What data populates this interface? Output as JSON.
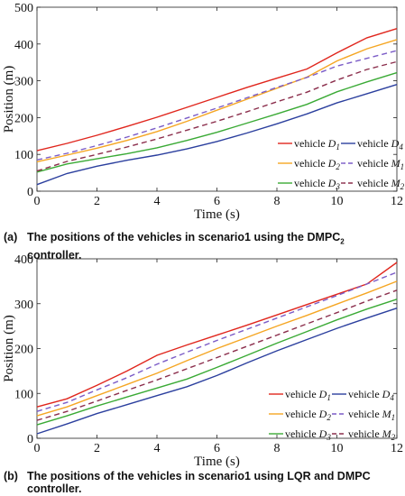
{
  "chart_data": [
    {
      "type": "line",
      "caption_tag": "(a)",
      "caption_line1": "The positions of the vehicles in scenario1 using the DMPC",
      "caption_sub": "2",
      "caption_line2": "controller.",
      "xlabel": "Time (s)",
      "ylabel": "Position (m)",
      "xlim": [
        0,
        12
      ],
      "ylim": [
        0,
        500
      ],
      "xticks": [
        "0",
        "2",
        "4",
        "6",
        "8",
        "10",
        "12"
      ],
      "yticks": [
        "0",
        "100",
        "200",
        "300",
        "400",
        "500"
      ],
      "grid": false,
      "legend_placement": "bottom-right",
      "series": [
        {
          "name": "vehicle D1",
          "label": "vehicle",
          "sym": "D",
          "sub": "1",
          "color": "#e0261d",
          "dash": false,
          "x": [
            0,
            1,
            2,
            3,
            4,
            5,
            6,
            7,
            8,
            9,
            10,
            11,
            12
          ],
          "y": [
            110,
            130,
            152,
            176,
            201,
            228,
            255,
            282,
            307,
            332,
            376,
            417,
            442
          ]
        },
        {
          "name": "vehicle D2",
          "label": "vehicle",
          "sym": "D",
          "sub": "2",
          "color": "#f5a623",
          "dash": false,
          "x": [
            0,
            1,
            2,
            3,
            4,
            5,
            6,
            7,
            8,
            9,
            10,
            11,
            12
          ],
          "y": [
            80,
            98,
            117,
            138,
            162,
            190,
            220,
            250,
            280,
            310,
            354,
            387,
            412
          ]
        },
        {
          "name": "vehicle D3",
          "label": "vehicle",
          "sym": "D",
          "sub": "3",
          "color": "#3aaa35",
          "dash": false,
          "x": [
            0,
            1,
            2,
            3,
            4,
            5,
            6,
            7,
            8,
            9,
            10,
            11,
            12
          ],
          "y": [
            52,
            74,
            88,
            102,
            118,
            138,
            160,
            185,
            210,
            236,
            270,
            297,
            322
          ]
        },
        {
          "name": "vehicle D4",
          "label": "vehicle",
          "sym": "D",
          "sub": "4",
          "color": "#2b3f9e",
          "dash": false,
          "x": [
            0,
            1,
            2,
            3,
            4,
            5,
            6,
            7,
            8,
            9,
            10,
            11,
            12
          ],
          "y": [
            18,
            48,
            68,
            84,
            98,
            115,
            135,
            158,
            183,
            210,
            240,
            265,
            290
          ]
        },
        {
          "name": "vehicle M1",
          "label": "vehicle",
          "sym": "M",
          "sub": "1",
          "color": "#7b5cc7",
          "dash": true,
          "x": [
            0,
            1,
            2,
            3,
            4,
            5,
            6,
            7,
            8,
            9,
            10,
            11,
            12
          ],
          "y": [
            85,
            103,
            124,
            147,
            172,
            199,
            226,
            254,
            282,
            309,
            340,
            361,
            382
          ]
        },
        {
          "name": "vehicle M2",
          "label": "vehicle",
          "sym": "M",
          "sub": "2",
          "color": "#8b2e4c",
          "dash": true,
          "x": [
            0,
            1,
            2,
            3,
            4,
            5,
            6,
            7,
            8,
            9,
            10,
            11,
            12
          ],
          "y": [
            55,
            81,
            100,
            120,
            142,
            166,
            190,
            216,
            243,
            269,
            302,
            331,
            352
          ]
        }
      ]
    },
    {
      "type": "line",
      "caption_tag": "(b)",
      "caption_line1": "The positions of the vehicles in scenario1 using LQR and DMPC",
      "caption_sub": "",
      "caption_line2": "controller.",
      "xlabel": "Time (s)",
      "ylabel": "Position (m)",
      "xlim": [
        0,
        12
      ],
      "ylim": [
        0,
        400
      ],
      "xticks": [
        "0",
        "2",
        "4",
        "6",
        "8",
        "10",
        "12"
      ],
      "yticks": [
        "0",
        "100",
        "200",
        "300",
        "400"
      ],
      "grid": false,
      "legend_placement": "bottom-right",
      "series": [
        {
          "name": "vehicle D1",
          "label": "vehicle",
          "sym": "D",
          "sub": "1",
          "color": "#e0261d",
          "dash": false,
          "x": [
            0,
            1,
            2,
            3,
            4,
            5,
            6,
            7,
            8,
            9,
            10,
            11,
            12
          ],
          "y": [
            70,
            88,
            118,
            150,
            185,
            208,
            230,
            252,
            275,
            298,
            321,
            344,
            392
          ]
        },
        {
          "name": "vehicle D2",
          "label": "vehicle",
          "sym": "D",
          "sub": "2",
          "color": "#f5a623",
          "dash": false,
          "x": [
            0,
            1,
            2,
            3,
            4,
            5,
            6,
            7,
            8,
            9,
            10,
            11,
            12
          ],
          "y": [
            50,
            70,
            95,
            120,
            145,
            173,
            200,
            225,
            250,
            274,
            299,
            324,
            350
          ]
        },
        {
          "name": "vehicle D3",
          "label": "vehicle",
          "sym": "D",
          "sub": "3",
          "color": "#3aaa35",
          "dash": false,
          "x": [
            0,
            1,
            2,
            3,
            4,
            5,
            6,
            7,
            8,
            9,
            10,
            11,
            12
          ],
          "y": [
            30,
            50,
            72,
            92,
            112,
            132,
            158,
            185,
            212,
            238,
            264,
            288,
            310
          ]
        },
        {
          "name": "vehicle D4",
          "label": "vehicle",
          "sym": "D",
          "sub": "4",
          "color": "#2b3f9e",
          "dash": false,
          "x": [
            0,
            1,
            2,
            3,
            4,
            5,
            6,
            7,
            8,
            9,
            10,
            11,
            12
          ],
          "y": [
            10,
            32,
            55,
            75,
            95,
            115,
            140,
            168,
            195,
            220,
            245,
            268,
            290
          ]
        },
        {
          "name": "vehicle M1",
          "label": "vehicle",
          "sym": "M",
          "sub": "1",
          "color": "#7b5cc7",
          "dash": true,
          "x": [
            0,
            1,
            2,
            3,
            4,
            5,
            6,
            7,
            8,
            9,
            10,
            11,
            12
          ],
          "y": [
            60,
            80,
            108,
            135,
            165,
            192,
            218,
            243,
            268,
            293,
            318,
            344,
            370
          ]
        },
        {
          "name": "vehicle M2",
          "label": "vehicle",
          "sym": "M",
          "sub": "2",
          "color": "#8b2e4c",
          "dash": true,
          "x": [
            0,
            1,
            2,
            3,
            4,
            5,
            6,
            7,
            8,
            9,
            10,
            11,
            12
          ],
          "y": [
            40,
            60,
            83,
            107,
            130,
            155,
            180,
            205,
            230,
            255,
            280,
            306,
            330
          ]
        }
      ]
    }
  ]
}
